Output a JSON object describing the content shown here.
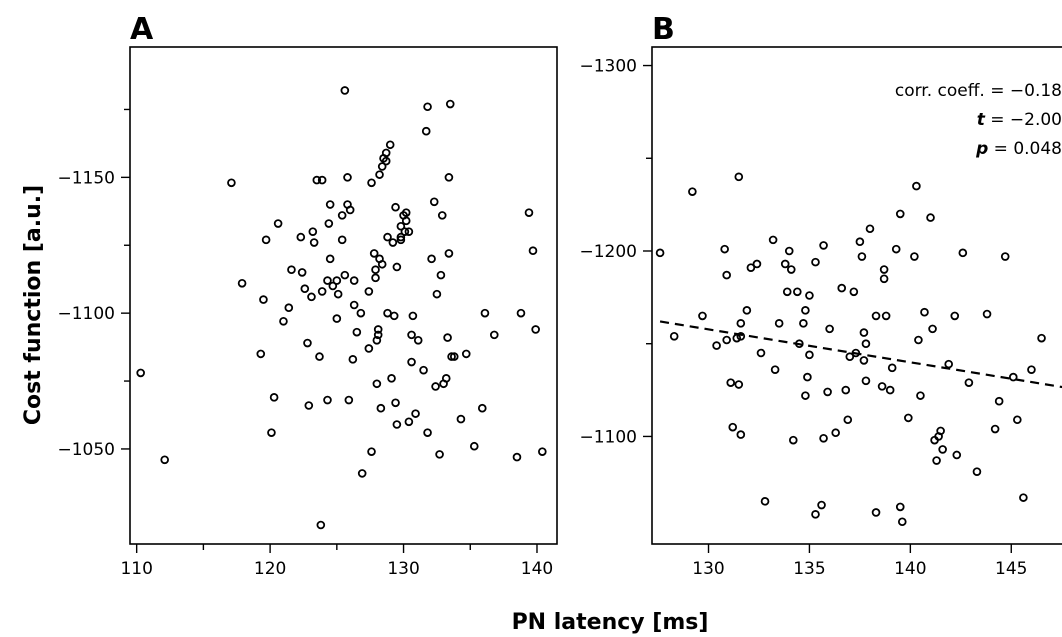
{
  "figure": {
    "xlabel": "PN latency [ms]",
    "ylabel": "Cost function [a.u.]"
  },
  "chart_data": [
    {
      "type": "scatter",
      "panel_label": "A",
      "xlim": [
        109.5,
        141.5
      ],
      "ylim": [
        -1015,
        -1198
      ],
      "y_inverted": true,
      "x_ticks": [
        110,
        120,
        130,
        140
      ],
      "x_tick_labels": [
        "110",
        "120",
        "130",
        "140"
      ],
      "x_minor_ticks": [
        115,
        125,
        135
      ],
      "y_ticks": [
        -1050,
        -1100,
        -1150
      ],
      "y_tick_labels": [
        "−1050",
        "−1100",
        "−1150"
      ],
      "y_minor_ticks": [
        -1075,
        -1125,
        -1175
      ],
      "points": [
        [
          110.3,
          -1078
        ],
        [
          112.1,
          -1046
        ],
        [
          117.1,
          -1148
        ],
        [
          117.9,
          -1111
        ],
        [
          119.3,
          -1085
        ],
        [
          119.5,
          -1105
        ],
        [
          119.7,
          -1127
        ],
        [
          120.1,
          -1056
        ],
        [
          120.3,
          -1069
        ],
        [
          120.6,
          -1133
        ],
        [
          121.0,
          -1097
        ],
        [
          121.4,
          -1102
        ],
        [
          121.6,
          -1116
        ],
        [
          122.3,
          -1128
        ],
        [
          122.4,
          -1115
        ],
        [
          122.6,
          -1109
        ],
        [
          122.8,
          -1089
        ],
        [
          122.9,
          -1066
        ],
        [
          123.1,
          -1106
        ],
        [
          123.2,
          -1130
        ],
        [
          123.3,
          -1126
        ],
        [
          123.5,
          -1149
        ],
        [
          123.9,
          -1149
        ],
        [
          123.7,
          -1084
        ],
        [
          123.9,
          -1108
        ],
        [
          123.8,
          -1022
        ],
        [
          124.3,
          -1112
        ],
        [
          124.3,
          -1068
        ],
        [
          124.5,
          -1120
        ],
        [
          124.4,
          -1133
        ],
        [
          124.5,
          -1140
        ],
        [
          124.7,
          -1110
        ],
        [
          125.0,
          -1098
        ],
        [
          125.1,
          -1107
        ],
        [
          125.4,
          -1127
        ],
        [
          125.0,
          -1112
        ],
        [
          125.4,
          -1136
        ],
        [
          125.6,
          -1114
        ],
        [
          125.6,
          -1182
        ],
        [
          125.8,
          -1140
        ],
        [
          125.8,
          -1150
        ],
        [
          125.9,
          -1068
        ],
        [
          126.0,
          -1138
        ],
        [
          126.2,
          -1083
        ],
        [
          126.3,
          -1112
        ],
        [
          126.3,
          -1103
        ],
        [
          126.5,
          -1093
        ],
        [
          126.8,
          -1100
        ],
        [
          126.9,
          -1041
        ],
        [
          127.4,
          -1087
        ],
        [
          127.4,
          -1108
        ],
        [
          127.6,
          -1049
        ],
        [
          127.6,
          -1148
        ],
        [
          127.8,
          -1122
        ],
        [
          127.9,
          -1113
        ],
        [
          127.9,
          -1116
        ],
        [
          128.0,
          -1090
        ],
        [
          128.0,
          -1074
        ],
        [
          128.1,
          -1094
        ],
        [
          128.1,
          -1092
        ],
        [
          128.2,
          -1120
        ],
        [
          128.2,
          -1151
        ],
        [
          128.3,
          -1065
        ],
        [
          128.4,
          -1154
        ],
        [
          128.4,
          -1118
        ],
        [
          128.5,
          -1157
        ],
        [
          128.7,
          -1159
        ],
        [
          128.8,
          -1100
        ],
        [
          128.8,
          -1128
        ],
        [
          128.7,
          -1156
        ],
        [
          129.0,
          -1162
        ],
        [
          129.1,
          -1076
        ],
        [
          129.2,
          -1126
        ],
        [
          129.3,
          -1099
        ],
        [
          129.4,
          -1139
        ],
        [
          129.4,
          -1067
        ],
        [
          129.5,
          -1059
        ],
        [
          129.5,
          -1117
        ],
        [
          129.8,
          -1128
        ],
        [
          129.8,
          -1127
        ],
        [
          129.8,
          -1132
        ],
        [
          130.0,
          -1136
        ],
        [
          130.1,
          -1130
        ],
        [
          130.2,
          -1137
        ],
        [
          130.2,
          -1134
        ],
        [
          130.4,
          -1130
        ],
        [
          130.4,
          -1060
        ],
        [
          130.6,
          -1092
        ],
        [
          130.6,
          -1082
        ],
        [
          130.7,
          -1099
        ],
        [
          130.9,
          -1063
        ],
        [
          131.1,
          -1090
        ],
        [
          131.5,
          -1079
        ],
        [
          131.7,
          -1167
        ],
        [
          131.8,
          -1176
        ],
        [
          131.8,
          -1056
        ],
        [
          132.1,
          -1120
        ],
        [
          132.3,
          -1141
        ],
        [
          132.4,
          -1073
        ],
        [
          132.5,
          -1107
        ],
        [
          132.7,
          -1048
        ],
        [
          132.8,
          -1114
        ],
        [
          132.9,
          -1136
        ],
        [
          133.0,
          -1074
        ],
        [
          133.2,
          -1076
        ],
        [
          133.3,
          -1091
        ],
        [
          133.4,
          -1150
        ],
        [
          133.4,
          -1122
        ],
        [
          133.5,
          -1177
        ],
        [
          133.6,
          -1084
        ],
        [
          133.8,
          -1084
        ],
        [
          134.3,
          -1061
        ],
        [
          134.7,
          -1085
        ],
        [
          135.3,
          -1051
        ],
        [
          135.9,
          -1065
        ],
        [
          136.1,
          -1100
        ],
        [
          136.8,
          -1092
        ],
        [
          138.5,
          -1047
        ],
        [
          138.8,
          -1100
        ],
        [
          139.4,
          -1137
        ],
        [
          139.7,
          -1123
        ],
        [
          139.9,
          -1094
        ],
        [
          140.4,
          -1049
        ]
      ]
    },
    {
      "type": "scatter",
      "panel_label": "B",
      "xlim": [
        127.2,
        149.0
      ],
      "ylim": [
        -1042,
        -1310
      ],
      "y_inverted": true,
      "x_ticks": [
        130,
        135,
        140,
        145
      ],
      "x_tick_labels": [
        "130",
        "135",
        "140",
        "145"
      ],
      "x_minor_ticks": [],
      "y_ticks": [
        -1100,
        -1200,
        -1300
      ],
      "y_tick_labels": [
        "−1100",
        "−1200",
        "−1300"
      ],
      "y_minor_ticks": [
        -1150,
        -1250
      ],
      "annotation": [
        {
          "label": "corr. coeff.",
          "italic": false,
          "value": "= −0.18"
        },
        {
          "label": "t",
          "italic": true,
          "value": "= −2.00"
        },
        {
          "label": "p",
          "italic": true,
          "value": "= 0.048"
        }
      ],
      "fit_line": {
        "x": [
          127.6,
          149.0
        ],
        "y": [
          -1162,
          -1124
        ]
      },
      "points": [
        [
          127.6,
          -1199
        ],
        [
          128.3,
          -1154
        ],
        [
          129.2,
          -1232
        ],
        [
          129.7,
          -1165
        ],
        [
          130.4,
          -1149
        ],
        [
          130.8,
          -1201
        ],
        [
          130.9,
          -1187
        ],
        [
          130.9,
          -1152
        ],
        [
          131.1,
          -1129
        ],
        [
          131.2,
          -1105
        ],
        [
          131.4,
          -1153
        ],
        [
          131.5,
          -1128
        ],
        [
          131.6,
          -1154
        ],
        [
          131.6,
          -1101
        ],
        [
          131.6,
          -1161
        ],
        [
          131.5,
          -1240
        ],
        [
          131.9,
          -1168
        ],
        [
          132.1,
          -1191
        ],
        [
          132.4,
          -1193
        ],
        [
          132.6,
          -1145
        ],
        [
          132.8,
          -1065
        ],
        [
          133.2,
          -1206
        ],
        [
          133.3,
          -1136
        ],
        [
          133.5,
          -1161
        ],
        [
          133.8,
          -1193
        ],
        [
          133.9,
          -1178
        ],
        [
          134.0,
          -1200
        ],
        [
          134.2,
          -1098
        ],
        [
          134.1,
          -1190
        ],
        [
          134.4,
          -1178
        ],
        [
          134.5,
          -1150
        ],
        [
          134.7,
          -1161
        ],
        [
          134.8,
          -1168
        ],
        [
          134.8,
          -1122
        ],
        [
          134.9,
          -1132
        ],
        [
          135.0,
          -1176
        ],
        [
          135.0,
          -1144
        ],
        [
          135.3,
          -1058
        ],
        [
          135.3,
          -1194
        ],
        [
          135.6,
          -1063
        ],
        [
          135.7,
          -1099
        ],
        [
          135.7,
          -1203
        ],
        [
          135.9,
          -1124
        ],
        [
          136.0,
          -1158
        ],
        [
          136.3,
          -1102
        ],
        [
          136.6,
          -1180
        ],
        [
          136.8,
          -1125
        ],
        [
          136.9,
          -1109
        ],
        [
          137.0,
          -1143
        ],
        [
          137.2,
          -1178
        ],
        [
          137.3,
          -1145
        ],
        [
          137.5,
          -1205
        ],
        [
          137.6,
          -1197
        ],
        [
          137.7,
          -1156
        ],
        [
          137.7,
          -1141
        ],
        [
          137.8,
          -1130
        ],
        [
          137.8,
          -1150
        ],
        [
          138.0,
          -1212
        ],
        [
          138.3,
          -1059
        ],
        [
          138.3,
          -1165
        ],
        [
          138.6,
          -1127
        ],
        [
          138.7,
          -1190
        ],
        [
          138.7,
          -1185
        ],
        [
          138.8,
          -1165
        ],
        [
          139.0,
          -1125
        ],
        [
          139.1,
          -1137
        ],
        [
          139.3,
          -1201
        ],
        [
          139.5,
          -1220
        ],
        [
          139.5,
          -1062
        ],
        [
          139.6,
          -1054
        ],
        [
          139.9,
          -1110
        ],
        [
          140.2,
          -1197
        ],
        [
          140.3,
          -1235
        ],
        [
          140.4,
          -1152
        ],
        [
          140.5,
          -1122
        ],
        [
          140.7,
          -1167
        ],
        [
          141.0,
          -1218
        ],
        [
          141.1,
          -1158
        ],
        [
          141.2,
          -1098
        ],
        [
          141.3,
          -1087
        ],
        [
          141.4,
          -1100
        ],
        [
          141.5,
          -1103
        ],
        [
          141.6,
          -1093
        ],
        [
          141.9,
          -1139
        ],
        [
          142.2,
          -1165
        ],
        [
          142.3,
          -1090
        ],
        [
          142.6,
          -1199
        ],
        [
          142.9,
          -1129
        ],
        [
          143.3,
          -1081
        ],
        [
          143.8,
          -1166
        ],
        [
          144.2,
          -1104
        ],
        [
          144.4,
          -1119
        ],
        [
          144.7,
          -1197
        ],
        [
          145.1,
          -1132
        ],
        [
          145.3,
          -1109
        ],
        [
          145.6,
          -1067
        ],
        [
          146.0,
          -1136
        ],
        [
          146.5,
          -1153
        ],
        [
          149.0,
          -1151
        ]
      ]
    }
  ]
}
